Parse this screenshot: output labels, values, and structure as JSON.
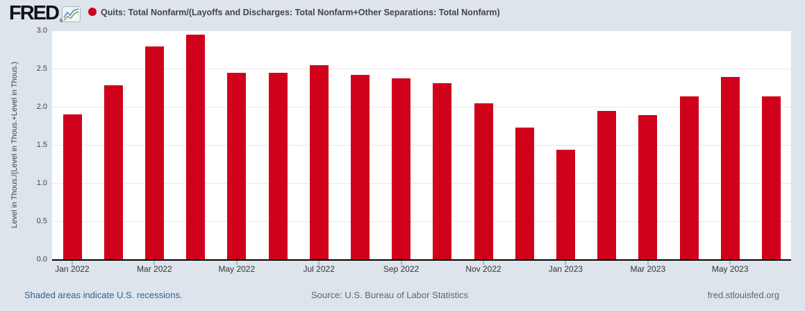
{
  "header": {
    "logo_text": "FRED",
    "registered_mark": "®",
    "series_title": "Quits: Total Nonfarm/(Layoffs and Discharges: Total Nonfarm+Other Separations: Total Nonfarm)"
  },
  "footer": {
    "recessions_note": "Shaded areas indicate U.S. recessions.",
    "source": "Source: U.S. Bureau of Labor Statistics",
    "site": "fred.stlouisfed.org"
  },
  "colors": {
    "background": "#dde4eb",
    "plot_background": "#ffffff",
    "bar": "#d0021b",
    "legend_dot": "#d0021b",
    "axis_line": "#000000",
    "gridline": "#e8e8e8",
    "tick_mark": "#a9b6c3",
    "title_text": "#444444",
    "link_blue": "#2f6195",
    "footer_gray": "#636669"
  },
  "chart_data": {
    "type": "bar",
    "title": "Quits: Total Nonfarm/(Layoffs and Discharges: Total Nonfarm+Other Separations: Total Nonfarm)",
    "xlabel": "",
    "ylabel": "Level in Thous./(Level in Thous.+Level in Thous.)",
    "ylim": [
      0,
      3
    ],
    "yticks": [
      "0.0",
      "0.5",
      "1.0",
      "1.5",
      "2.0",
      "2.5",
      "3.0"
    ],
    "grid": "horizontal",
    "legend_position": "top-left",
    "bar_color": "#d0021b",
    "categories": [
      "Jan 2022",
      "Feb 2022",
      "Mar 2022",
      "Apr 2022",
      "May 2022",
      "Jun 2022",
      "Jul 2022",
      "Aug 2022",
      "Sep 2022",
      "Oct 2022",
      "Nov 2022",
      "Dec 2022",
      "Jan 2023",
      "Feb 2023",
      "Mar 2023",
      "Apr 2023",
      "May 2023",
      "Jun 2023"
    ],
    "values": [
      1.9,
      2.28,
      2.79,
      2.95,
      2.45,
      2.45,
      2.55,
      2.42,
      2.37,
      2.31,
      2.05,
      1.73,
      1.44,
      1.95,
      1.89,
      2.14,
      2.39,
      2.14
    ],
    "x_tick_labels": [
      "Jan 2022",
      "Mar 2022",
      "May 2022",
      "Jul 2022",
      "Sep 2022",
      "Nov 2022",
      "Jan 2023",
      "Mar 2023",
      "May 2023"
    ],
    "x_label_every": 2
  }
}
